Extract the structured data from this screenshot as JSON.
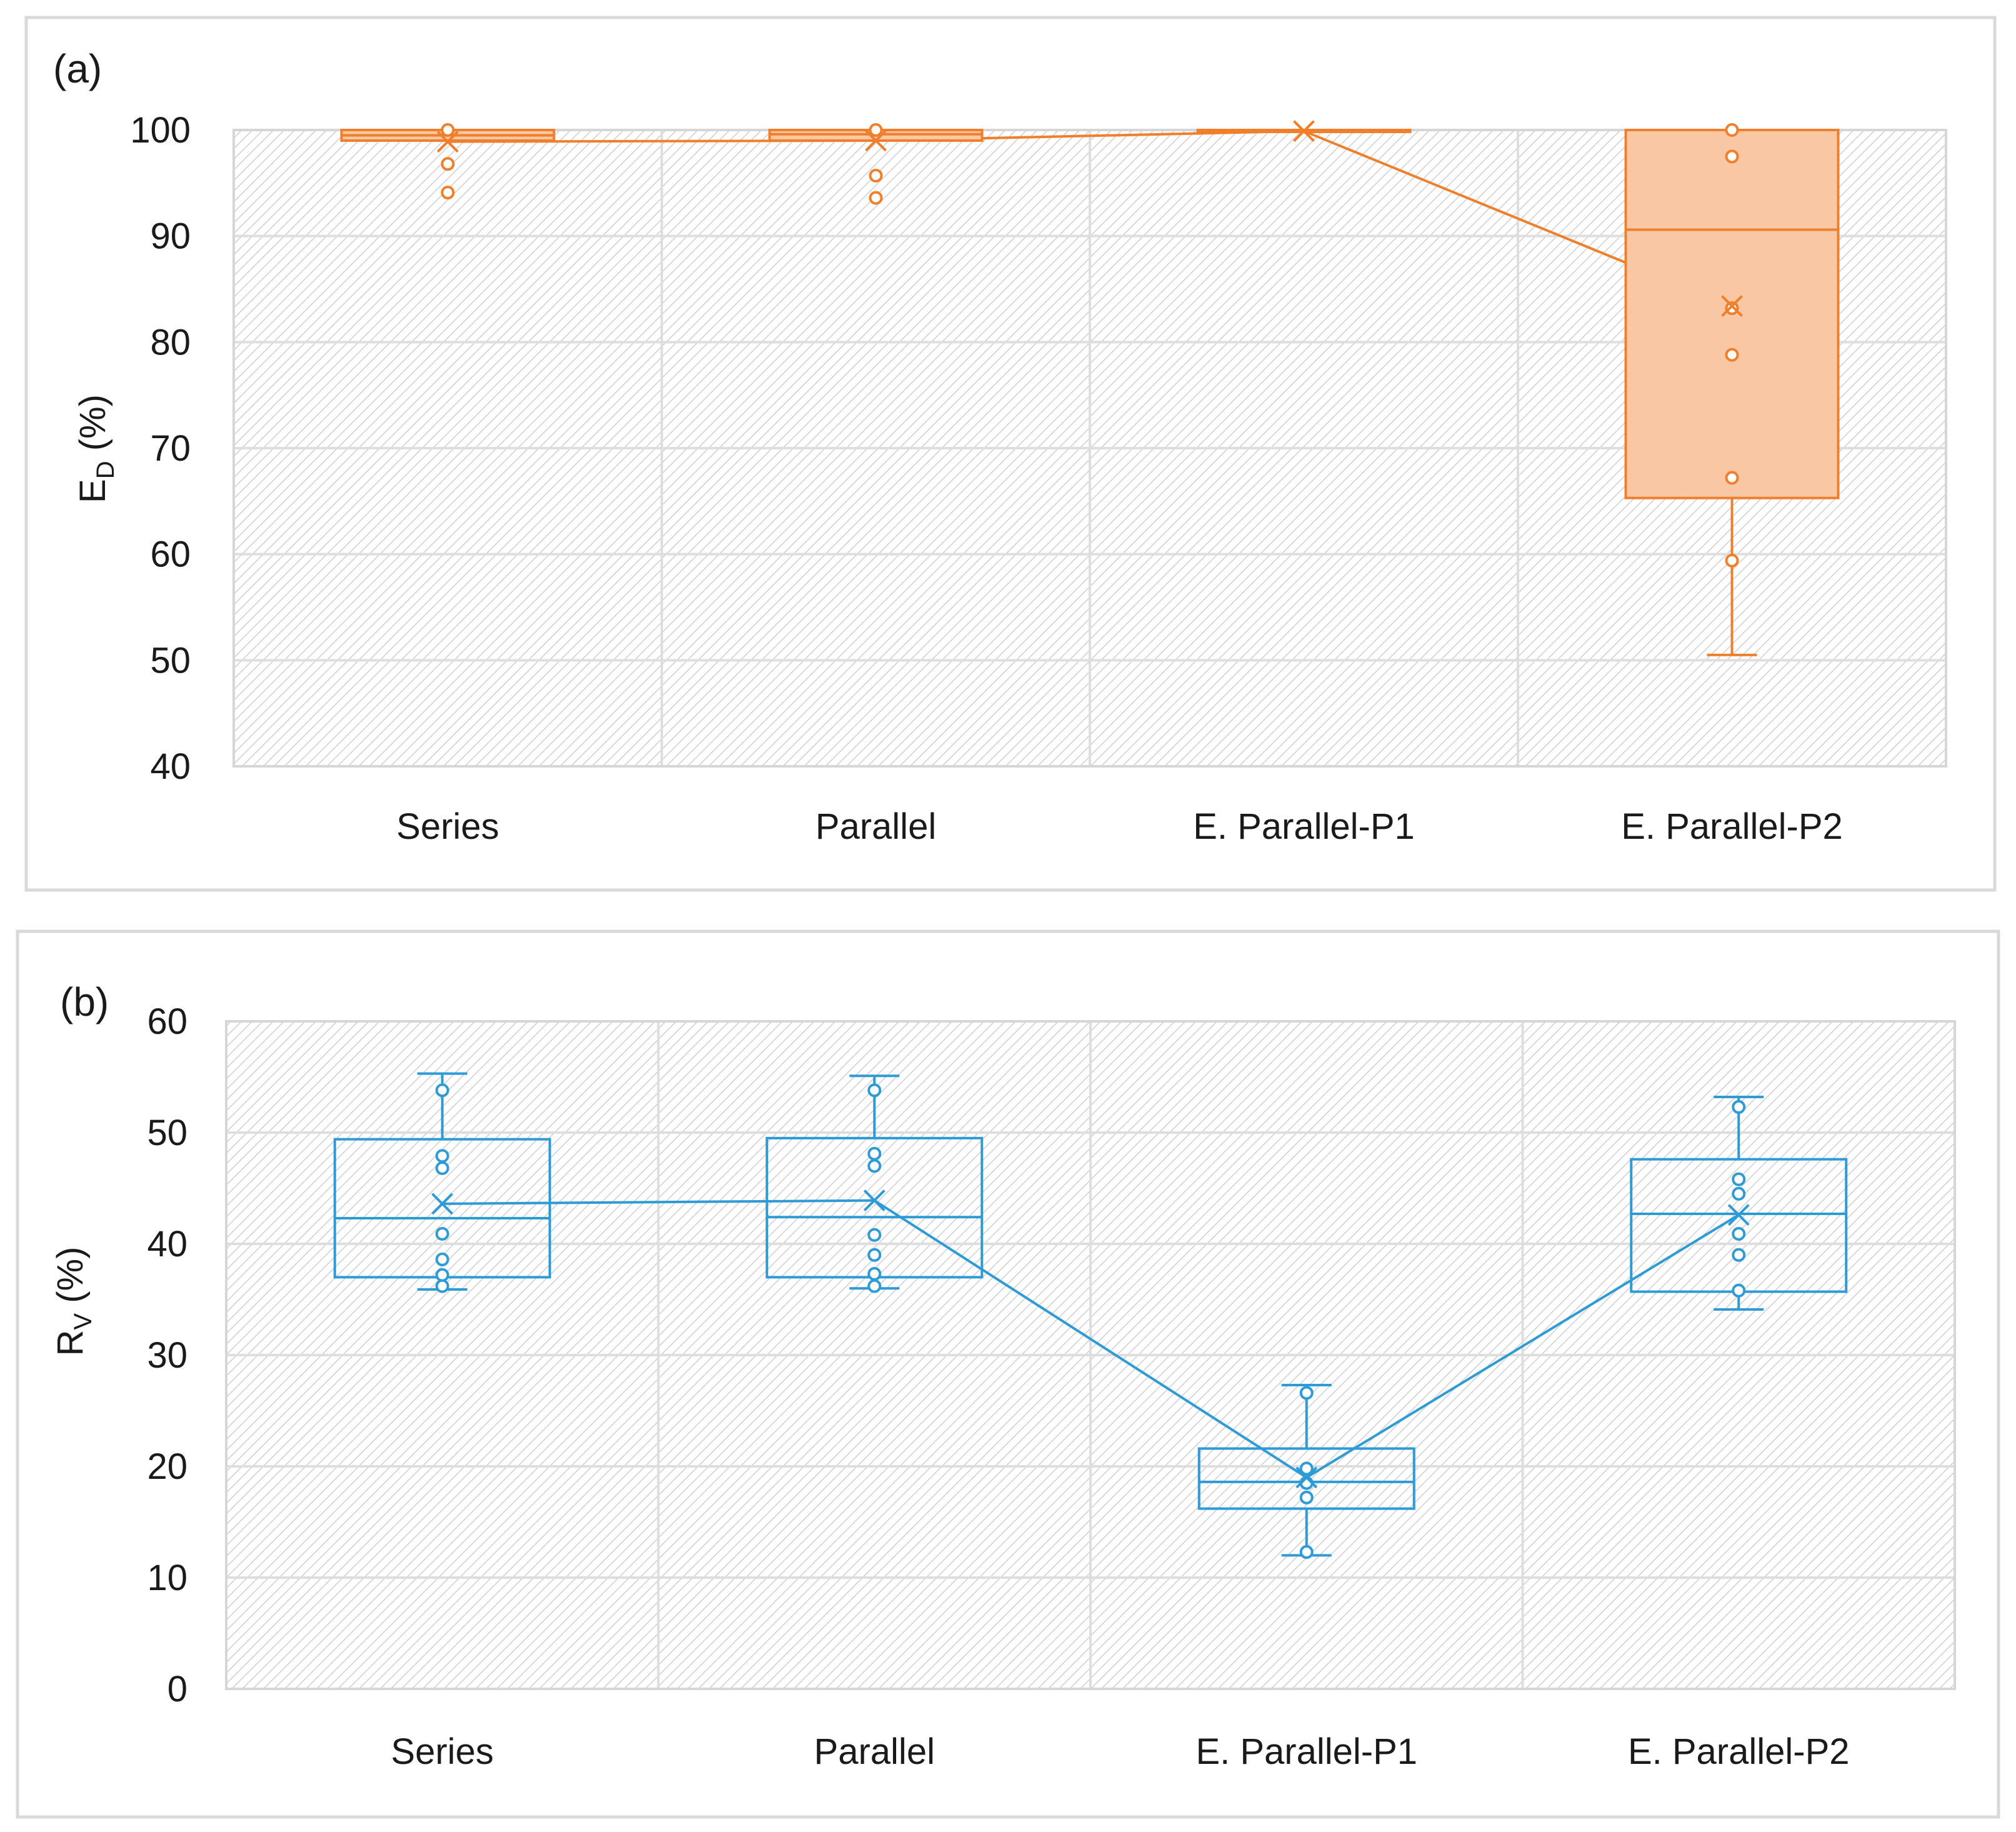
{
  "chart_data": [
    {
      "panel": "(a)",
      "type": "box",
      "color": "#f07f2c",
      "fill": "#f9c7a3",
      "ylabel": "E",
      "ylabel_sub": "D",
      "ylabel_suffix": " (%)",
      "ylim": [
        40,
        100
      ],
      "yticks": [
        40,
        50,
        60,
        70,
        80,
        90,
        100
      ],
      "grid": true,
      "categories": [
        "Series",
        "Parallel",
        "E. Parallel-P1",
        "E. Parallel-P2"
      ],
      "boxes": [
        {
          "category": "Series",
          "min": 99.0,
          "q1": 99.0,
          "median": 99.5,
          "q3": 100.0,
          "max": 100.0,
          "mean": 98.9,
          "points": [
            100,
            96.8,
            94.1
          ]
        },
        {
          "category": "Parallel",
          "min": 99.0,
          "q1": 99.0,
          "median": 99.6,
          "q3": 100.0,
          "max": 100.0,
          "mean": 99.0,
          "points": [
            100,
            95.7,
            93.6
          ]
        },
        {
          "category": "E. Parallel-P1",
          "min": 100.0,
          "q1": 100.0,
          "median": 100.0,
          "q3": 100.0,
          "max": 100.0,
          "mean": 99.9,
          "points": []
        },
        {
          "category": "E. Parallel-P2",
          "min": 50.5,
          "q1": 65.3,
          "median": 90.6,
          "q3": 100.0,
          "max": 100.0,
          "mean": 83.4,
          "points": [
            100,
            97.5,
            83.2,
            78.8,
            67.2,
            59.4
          ]
        }
      ]
    },
    {
      "panel": "(b)",
      "type": "box",
      "color": "#2e9bd6",
      "fill": "none",
      "ylabel": "R",
      "ylabel_sub": "V",
      "ylabel_suffix": " (%)",
      "ylim": [
        0,
        60
      ],
      "yticks": [
        0,
        10,
        20,
        30,
        40,
        50,
        60
      ],
      "grid": true,
      "categories": [
        "Series",
        "Parallel",
        "E. Parallel-P1",
        "E. Parallel-P2"
      ],
      "boxes": [
        {
          "category": "Series",
          "min": 35.9,
          "q1": 37.0,
          "median": 42.3,
          "q3": 49.4,
          "max": 55.3,
          "mean": 43.6,
          "points": [
            53.8,
            47.9,
            46.8,
            40.9,
            38.6,
            37.2,
            36.2
          ]
        },
        {
          "category": "Parallel",
          "min": 36.0,
          "q1": 37.0,
          "median": 42.4,
          "q3": 49.5,
          "max": 55.1,
          "mean": 43.9,
          "points": [
            53.8,
            48.1,
            47.0,
            40.8,
            39.0,
            37.3,
            36.2
          ]
        },
        {
          "category": "E. Parallel-P1",
          "min": 12.0,
          "q1": 16.2,
          "median": 18.6,
          "q3": 21.6,
          "max": 27.3,
          "mean": 19.0,
          "points": [
            26.6,
            19.8,
            18.5,
            17.2,
            12.3
          ]
        },
        {
          "category": "E. Parallel-P2",
          "min": 34.1,
          "q1": 35.7,
          "median": 42.7,
          "q3": 47.6,
          "max": 53.2,
          "mean": 42.6,
          "points": [
            52.3,
            45.8,
            44.5,
            40.9,
            39.0,
            35.8
          ]
        }
      ]
    }
  ]
}
